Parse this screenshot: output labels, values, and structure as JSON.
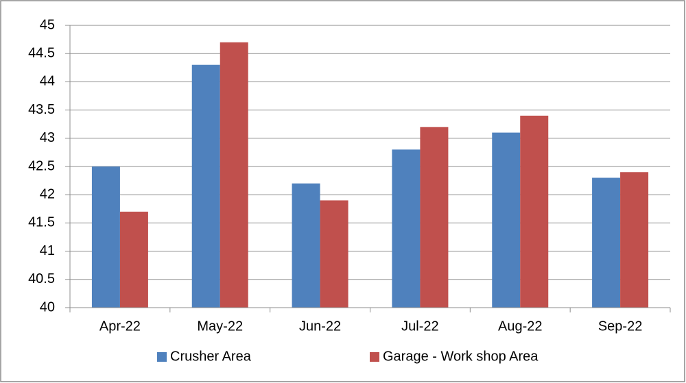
{
  "chart_data": {
    "type": "bar",
    "categories": [
      "Apr-22",
      "May-22",
      "Jun-22",
      "Jul-22",
      "Aug-22",
      "Sep-22"
    ],
    "series": [
      {
        "name": "Crusher Area",
        "color": "#4f81bd",
        "values": [
          42.5,
          44.3,
          42.2,
          42.8,
          43.1,
          42.3
        ]
      },
      {
        "name": "Garage - Work shop Area",
        "color": "#c0504d",
        "values": [
          41.7,
          44.7,
          41.9,
          43.2,
          43.4,
          42.4
        ]
      }
    ],
    "ylim": [
      40,
      45
    ],
    "yticks": [
      40,
      40.5,
      41,
      41.5,
      42,
      42.5,
      43,
      43.5,
      44,
      44.5,
      45
    ],
    "grid": true,
    "legend": "bottom"
  }
}
